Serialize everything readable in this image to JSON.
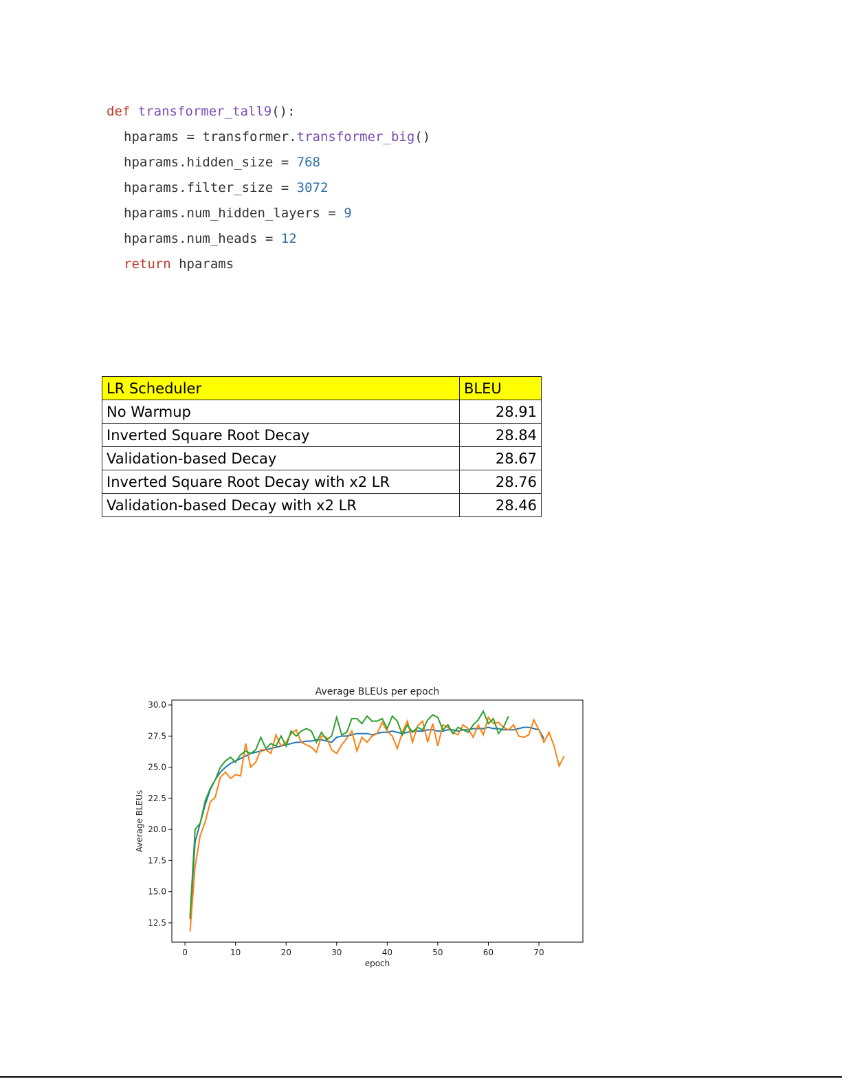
{
  "code": {
    "lines": [
      [
        {
          "text": "def ",
          "color": "#c0392b"
        },
        {
          "text": "transformer_tall9",
          "color": "#7a4fb5"
        },
        {
          "text": "():",
          "color": "#333333"
        }
      ],
      [
        {
          "text": "hparams = transformer.",
          "color": "#333333"
        },
        {
          "text": "transformer_big",
          "color": "#7a4fb5"
        },
        {
          "text": "()",
          "color": "#333333"
        }
      ],
      [
        {
          "text": "hparams.hidden_size = ",
          "color": "#333333"
        },
        {
          "text": "768",
          "color": "#2f6ea6"
        }
      ],
      [
        {
          "text": "hparams.filter_size = ",
          "color": "#333333"
        },
        {
          "text": "3072",
          "color": "#2f6ea6"
        }
      ],
      [
        {
          "text": "hparams.num_hidden_layers = ",
          "color": "#333333"
        },
        {
          "text": "9",
          "color": "#2f6ea6"
        }
      ],
      [
        {
          "text": "hparams.num_heads = ",
          "color": "#333333"
        },
        {
          "text": "12",
          "color": "#2f6ea6"
        }
      ],
      [
        {
          "text": "return ",
          "color": "#c0392b"
        },
        {
          "text": "hparams",
          "color": "#333333"
        }
      ]
    ]
  },
  "table": {
    "header": [
      "LR Scheduler",
      "BLEU"
    ],
    "rows": [
      [
        "No Warmup",
        28.91
      ],
      [
        "Inverted Square Root Decay",
        28.84
      ],
      [
        "Validation-based Decay",
        28.67
      ],
      [
        "Inverted Square Root Decay with x2 LR",
        28.76
      ],
      [
        "Validation-based Decay with x2 LR",
        28.46
      ]
    ]
  },
  "chart_data": {
    "type": "line",
    "title": "Average BLEUs per epoch",
    "xlabel": "epoch",
    "ylabel": "Average BLEUs",
    "x": [
      1,
      2,
      3,
      4,
      5,
      6,
      7,
      8,
      9,
      10,
      11,
      12,
      13,
      14,
      15,
      16,
      17,
      18,
      19,
      20,
      21,
      22,
      23,
      24,
      25,
      26,
      27,
      28,
      29,
      30,
      31,
      32,
      33,
      34,
      35,
      36,
      37,
      38,
      39,
      40,
      41,
      42,
      43,
      44,
      45,
      46,
      47,
      48,
      49,
      50,
      51,
      52,
      53,
      54,
      55,
      56,
      57,
      58,
      59,
      60,
      61,
      62,
      63,
      64,
      65,
      66,
      67,
      68,
      69,
      70,
      71,
      72,
      73,
      74,
      75
    ],
    "series": [
      {
        "color": "#1f77b4",
        "values": [
          12.8,
          19,
          20.5,
          22,
          23.2,
          24,
          24.6,
          25,
          25.3,
          25.5,
          25.7,
          25.9,
          26.1,
          26.2,
          26.3,
          26.4,
          26.5,
          26.6,
          26.7,
          26.8,
          26.9,
          27.0,
          27.0,
          27.1,
          27.1,
          27.2,
          27.2,
          27.1,
          27.0,
          27.4,
          27.5,
          27.5,
          27.6,
          27.7,
          27.7,
          27.7,
          27.6,
          27.7,
          27.8,
          27.8,
          27.9,
          27.8,
          27.7,
          27.8,
          27.9,
          27.9,
          27.9,
          28.0,
          28.0,
          27.9,
          27.9,
          28.0,
          28.0,
          27.9,
          28.0,
          28.0,
          28.1,
          28.1,
          28.1,
          28.2,
          28.1,
          28.1,
          28.0,
          28.0,
          28.0,
          28.1,
          28.2,
          28.2,
          28.1,
          28.0,
          27.3,
          null,
          null,
          null,
          null
        ]
      },
      {
        "color": "#ff7f0e",
        "values": [
          11.8,
          17,
          19.5,
          20.6,
          22.2,
          22.6,
          24.2,
          24.6,
          24.1,
          24.4,
          24.3,
          26.9,
          25,
          25.4,
          26.4,
          26.4,
          26.1,
          27.6,
          26.7,
          27.0,
          27.7,
          28.0,
          27.0,
          26.8,
          26.6,
          26.2,
          27.5,
          27.4,
          26.4,
          26.1,
          26.8,
          27.3,
          27.9,
          26.3,
          27.4,
          27.0,
          27.5,
          27.7,
          28.6,
          27.9,
          27.5,
          26.5,
          27.8,
          28.7,
          27.0,
          28.3,
          28.7,
          27.0,
          28.5,
          26.7,
          28.4,
          28.2,
          27.8,
          27.6,
          28.4,
          28.1,
          27.4,
          28.4,
          27.6,
          29.0,
          28.5,
          28.6,
          28.2,
          28.0,
          28.4,
          27.5,
          27.4,
          27.6,
          28.8,
          28.0,
          27.0,
          27.8,
          26.7,
          25.1,
          25.9
        ]
      },
      {
        "color": "#2ca02c",
        "values": [
          13,
          20,
          20.5,
          22.3,
          23.3,
          24,
          25,
          25.5,
          25.8,
          25.4,
          26,
          26.3,
          26.1,
          26.4,
          27.4,
          26.5,
          26.9,
          26.7,
          27.5,
          26.7,
          27.9,
          27.5,
          27.9,
          28.1,
          27.9,
          27.0,
          27.8,
          27.2,
          27.5,
          29.0,
          27.6,
          27.8,
          28.9,
          28.9,
          28.5,
          29.1,
          28.7,
          28.7,
          28.9,
          28.1,
          29.1,
          28.7,
          27.6,
          28.4,
          27.8,
          28.2,
          28.0,
          28.8,
          29.2,
          29.0,
          28.0,
          28.4,
          27.7,
          28.2,
          28.0,
          27.8,
          28.4,
          28.8,
          29.5,
          28.5,
          28.9,
          27.7,
          28.2,
          29.1,
          null,
          null,
          null,
          null,
          null,
          null,
          null,
          null,
          null,
          null,
          null
        ]
      }
    ],
    "xlim": [
      -2.6,
      78.7
    ],
    "ylim": [
      10.95,
      30.39
    ],
    "xticks": [
      0,
      10,
      20,
      30,
      40,
      50,
      60,
      70
    ],
    "yticks": [
      {
        "value": 12.5,
        "label": "12.5"
      },
      {
        "value": 15,
        "label": "15.0"
      },
      17.5,
      {
        "value": 20,
        "label": "20.0"
      },
      22.5,
      {
        "value": 25,
        "label": "25.0"
      },
      27.5,
      {
        "value": 30,
        "label": "30.0"
      }
    ],
    "grid": false
  }
}
